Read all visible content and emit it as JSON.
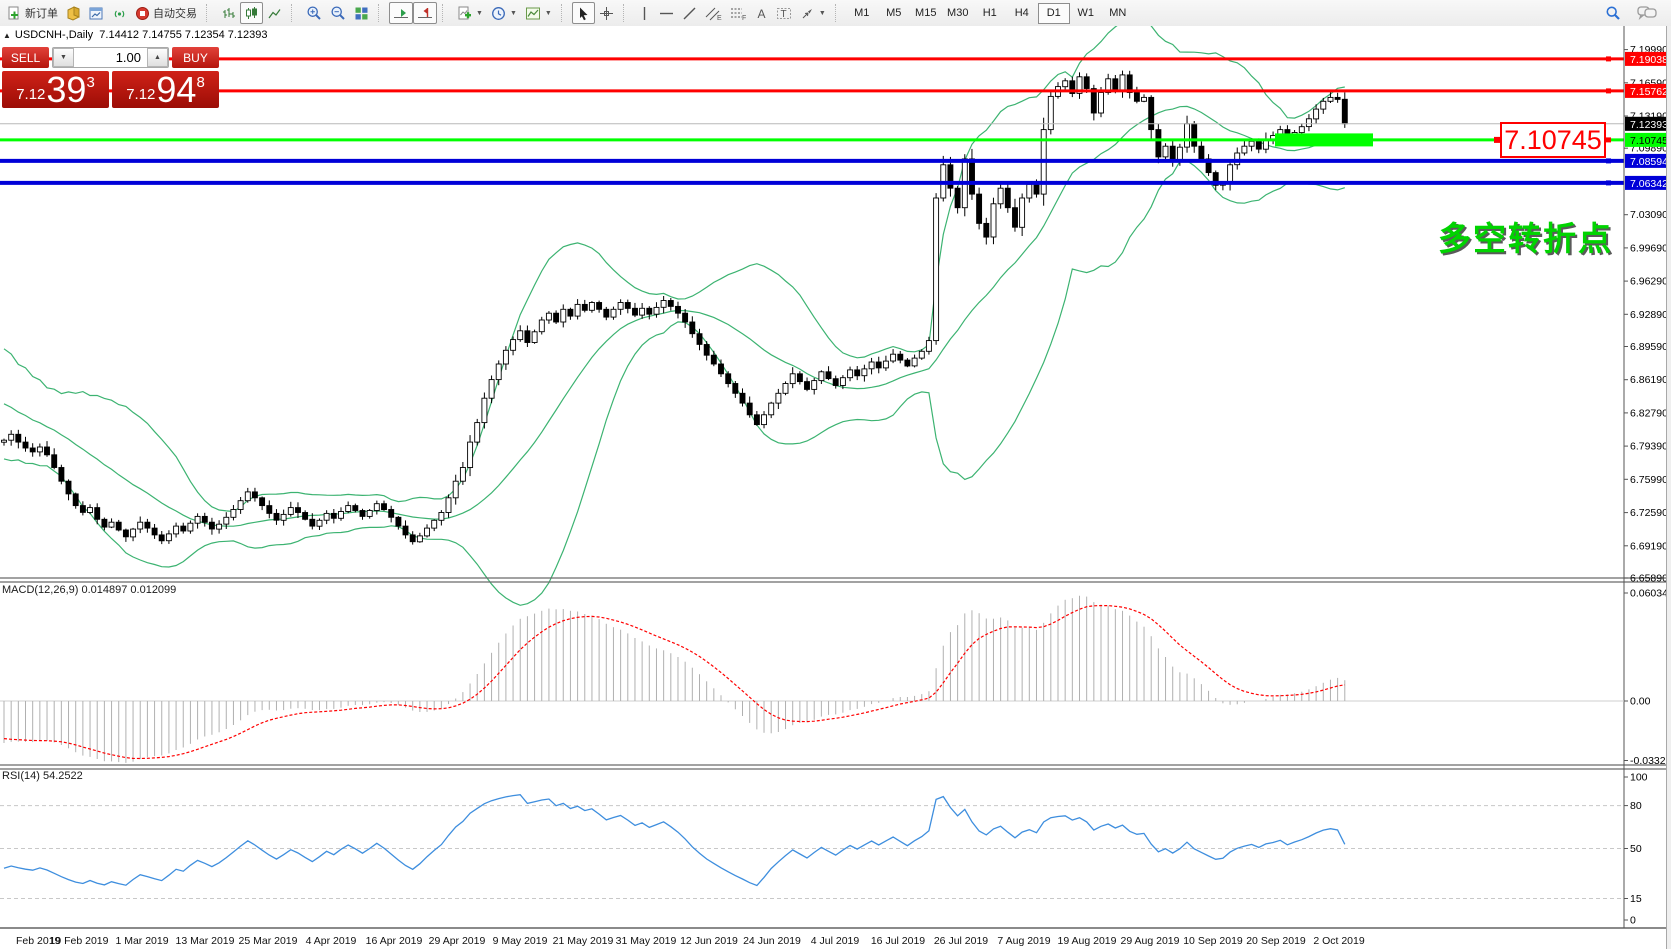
{
  "toolbar": {
    "new_order": "新订单",
    "autotrading": "自动交易",
    "timeframes": [
      {
        "label": "M1",
        "active": false
      },
      {
        "label": "M5",
        "active": false
      },
      {
        "label": "M15",
        "active": false
      },
      {
        "label": "M30",
        "active": false
      },
      {
        "label": "H1",
        "active": false
      },
      {
        "label": "H4",
        "active": false
      },
      {
        "label": "D1",
        "active": true
      },
      {
        "label": "W1",
        "active": false
      },
      {
        "label": "MN",
        "active": false
      }
    ]
  },
  "header": {
    "collapse_icon": "▲",
    "symbol_period": "USDCNH-,Daily",
    "ohlc": "7.14412 7.14755 7.12354 7.12393"
  },
  "quote": {
    "sell_label": "SELL",
    "buy_label": "BUY",
    "volume": "1.00",
    "sell": {
      "prefix": "7.12",
      "big": "39",
      "sup": "3"
    },
    "buy": {
      "prefix": "7.12",
      "big": "94",
      "sup": "8"
    }
  },
  "chart_data": {
    "type": "candlestick",
    "symbol": "USDCNH-",
    "period": "Daily",
    "annotation": "多空转折点",
    "level_label": "7.10745",
    "colors": {
      "bull": "#ffffff",
      "bear": "#000000",
      "outline": "#000000",
      "bollinger": "#3CB371",
      "red_line": "#ff0000",
      "blue_line": "#0000d8",
      "green_line": "#00ff00",
      "current_line": "#b8b8b8",
      "macd_hist": "#b0b0b0",
      "macd_signal": "#ff0000",
      "rsi_line": "#3e8ede"
    },
    "y_ticks": [
      "7.19990",
      "7.16590",
      "7.13190",
      "7.09890",
      "7.03090",
      "6.99690",
      "6.96290",
      "6.92890",
      "6.89590",
      "6.86190",
      "6.82790",
      "6.79390",
      "6.75990",
      "6.72590",
      "6.69190",
      "6.65890"
    ],
    "price_lines": [
      {
        "value": 7.19038,
        "label": "7.19038",
        "color": "#ff0000",
        "badge_text": "#ffffff",
        "width": 3
      },
      {
        "value": 7.15762,
        "label": "7.15762",
        "color": "#ff0000",
        "badge_text": "#ffffff",
        "width": 3
      },
      {
        "value": 7.10745,
        "label": "7.10745",
        "color": "#00ff00",
        "badge_text": "#000000",
        "width": 3
      },
      {
        "value": 7.08594,
        "label": "7.08594",
        "color": "#0000d8",
        "badge_text": "#ffffff",
        "width": 4
      },
      {
        "value": 7.06342,
        "label": "7.06342",
        "color": "#0000d8",
        "badge_text": "#ffffff",
        "width": 4
      }
    ],
    "current_price": {
      "value": 7.12393,
      "label": "7.12393"
    },
    "highlight_zone": {
      "price": 7.10745,
      "color": "#00ff00"
    },
    "x_labels": [
      "Feb 2019",
      "19 Feb 2019",
      "1 Mar 2019",
      "13 Mar 2019",
      "25 Mar 2019",
      "4 Apr 2019",
      "16 Apr 2019",
      "29 Apr 2019",
      "9 May 2019",
      "21 May 2019",
      "31 May 2019",
      "12 Jun 2019",
      "24 Jun 2019",
      "4 Jul 2019",
      "16 Jul 2019",
      "26 Jul 2019",
      "7 Aug 2019",
      "19 Aug 2019",
      "29 Aug 2019",
      "10 Sep 2019",
      "20 Sep 2019",
      "2 Oct 2019"
    ],
    "macd": {
      "display": "MACD(12,26,9) 0.014897 0.012099",
      "ticks": [
        {
          "label": "0.060346",
          "value": 0.060346
        },
        {
          "label": "0.00",
          "value": 0
        },
        {
          "label": "-0.033267",
          "value": -0.033267
        }
      ]
    },
    "rsi": {
      "display": "RSI(14) 54.2522",
      "levels": [
        80,
        50,
        15
      ],
      "ticks": [
        {
          "label": "100",
          "value": 100
        },
        {
          "label": "80",
          "value": 80
        },
        {
          "label": "50",
          "value": 50
        },
        {
          "label": "15",
          "value": 15
        },
        {
          "label": "0",
          "value": 0
        }
      ]
    },
    "seed_closes": [
      6.905,
      6.878,
      6.895,
      6.862,
      6.88,
      6.85,
      6.867,
      6.84,
      6.856,
      6.83,
      6.845,
      6.822,
      6.838,
      6.815,
      6.828,
      6.808,
      6.82,
      6.8,
      6.812,
      6.798
    ],
    "closes": [
      6.8,
      6.806,
      6.798,
      6.792,
      6.788,
      6.793,
      6.785,
      6.772,
      6.758,
      6.745,
      6.733,
      6.726,
      6.731,
      6.719,
      6.711,
      6.716,
      6.708,
      6.701,
      6.709,
      6.716,
      6.71,
      6.703,
      6.697,
      6.704,
      6.712,
      6.707,
      6.715,
      6.722,
      6.716,
      6.709,
      6.714,
      6.721,
      6.729,
      6.738,
      6.747,
      6.741,
      6.733,
      6.725,
      6.718,
      6.724,
      6.731,
      6.726,
      6.719,
      6.712,
      6.718,
      6.725,
      6.72,
      6.727,
      6.733,
      6.728,
      6.722,
      6.728,
      6.735,
      6.729,
      6.721,
      6.712,
      6.703,
      6.696,
      6.702,
      6.71,
      6.718,
      6.726,
      6.741,
      6.758,
      6.772,
      6.798,
      6.818,
      6.843,
      6.862,
      6.878,
      6.892,
      6.903,
      6.912,
      6.9,
      6.911,
      6.923,
      6.93,
      6.921,
      6.934,
      6.927,
      6.939,
      6.933,
      6.941,
      6.934,
      6.926,
      6.934,
      6.941,
      6.935,
      6.928,
      6.935,
      6.929,
      6.936,
      6.943,
      6.937,
      6.93,
      6.921,
      6.909,
      6.898,
      6.887,
      6.878,
      6.868,
      6.858,
      6.848,
      6.838,
      6.826,
      6.816,
      6.826,
      6.838,
      6.848,
      6.858,
      6.868,
      6.86,
      6.852,
      6.861,
      6.87,
      6.863,
      6.856,
      6.864,
      6.872,
      6.866,
      6.873,
      6.88,
      6.874,
      6.881,
      6.888,
      6.882,
      6.876,
      6.884,
      6.891,
      6.902,
      7.048,
      7.082,
      7.058,
      7.038,
      7.088,
      7.052,
      7.022,
      7.008,
      7.042,
      7.058,
      7.038,
      7.018,
      7.048,
      7.062,
      7.052,
      7.118,
      7.152,
      7.162,
      7.168,
      7.155,
      7.172,
      7.16,
      7.135,
      7.156,
      7.17,
      7.158,
      7.174,
      7.156,
      7.147,
      7.151,
      7.118,
      7.09,
      7.101,
      7.085,
      7.1,
      7.124,
      7.101,
      7.088,
      7.074,
      7.061,
      7.064,
      7.082,
      7.094,
      7.101,
      7.106,
      7.098,
      7.108,
      7.112,
      7.118,
      7.108,
      7.115,
      7.121,
      7.129,
      7.139,
      7.147,
      7.151,
      7.149,
      7.124
    ]
  }
}
